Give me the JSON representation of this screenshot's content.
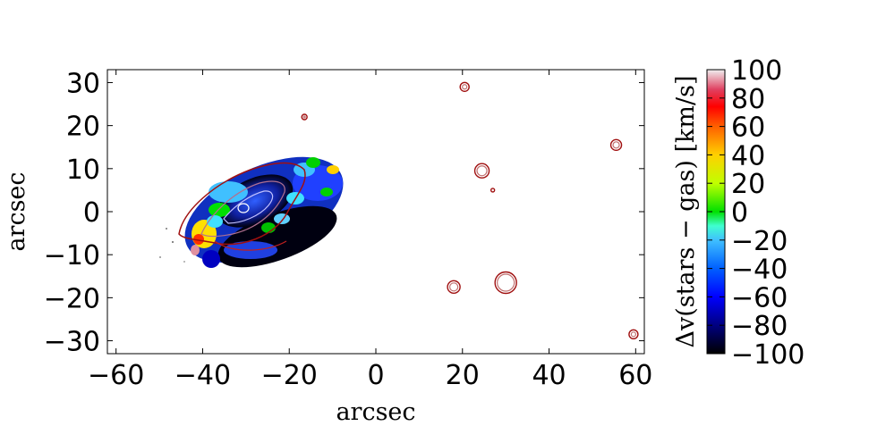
{
  "chart_data": {
    "type": "heatmap",
    "title": "",
    "xlabel": "arcsec",
    "ylabel": "arcsec",
    "xlim": [
      -62,
      62
    ],
    "ylim": [
      -33,
      33
    ],
    "xticks": [
      -60,
      -40,
      -20,
      0,
      20,
      40,
      60
    ],
    "yticks": [
      -30,
      -20,
      -10,
      0,
      10,
      20,
      30
    ],
    "xtick_labels": [
      "−60",
      "−40",
      "−20",
      "0",
      "20",
      "40",
      "60"
    ],
    "ytick_labels": [
      "−30",
      "−20",
      "−10",
      "0",
      "10",
      "20",
      "30"
    ],
    "colorbar": {
      "label": "Δv(stars − gas) [km/s]",
      "range": [
        -100,
        100
      ],
      "ticks": [
        -100,
        -80,
        -60,
        -40,
        -20,
        0,
        20,
        40,
        60,
        80,
        100
      ],
      "tick_labels": [
        "−100",
        "−80",
        "−60",
        "−40",
        "−20",
        "0",
        "20",
        "40",
        "60",
        "80",
        "100"
      ],
      "colormap": "jet-like (black-blue-cyan-green-yellow-red-white)"
    },
    "contour_color": "#a01010",
    "point_sources": [
      {
        "x": 20.5,
        "y": 29
      },
      {
        "x": -16.5,
        "y": 22
      },
      {
        "x": 55.5,
        "y": 15.5
      },
      {
        "x": 24.5,
        "y": 9.5
      },
      {
        "x": 27,
        "y": 5
      },
      {
        "x": 18,
        "y": -17.5
      },
      {
        "x": 30,
        "y": -16.5
      },
      {
        "x": 59.5,
        "y": -28.5
      }
    ],
    "velocity_map_region": {
      "center": [
        -26,
        -1
      ],
      "extent_x": [
        -50,
        -5
      ],
      "extent_y": [
        -14,
        15
      ],
      "note": "galaxy disc map, mostly negative values on the east side, mixed positive on the west edge"
    }
  }
}
